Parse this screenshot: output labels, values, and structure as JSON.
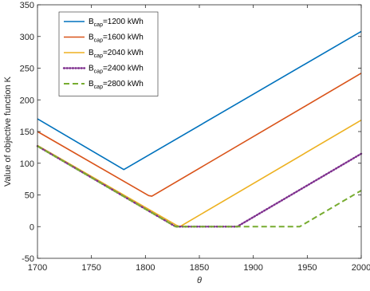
{
  "chart_data": {
    "type": "line",
    "xlabel": "θ",
    "ylabel": "Value of objective function K",
    "xlim": [
      1700,
      2000
    ],
    "ylim": [
      -50,
      350
    ],
    "xticks": [
      1700,
      1750,
      1800,
      1850,
      1900,
      1950,
      2000
    ],
    "yticks": [
      -50,
      0,
      50,
      100,
      150,
      200,
      250,
      300,
      350
    ],
    "grid": false,
    "legend_position": "top-left",
    "series": [
      {
        "name": "B_cap=1200 kWh",
        "legend_main": "B",
        "legend_sub": "cap",
        "legend_rest": "=1200 kWh",
        "color": "#0072BD",
        "style": "solid",
        "x": [
          1700,
          1780,
          2000
        ],
        "y": [
          170,
          90,
          308
        ]
      },
      {
        "name": "B_cap=1600 kWh",
        "legend_main": "B",
        "legend_sub": "cap",
        "legend_rest": "=1600 kWh",
        "color": "#D95319",
        "style": "solid",
        "x": [
          1700,
          1803,
          1806,
          2000
        ],
        "y": [
          150,
          49,
          48,
          242
        ]
      },
      {
        "name": "B_cap=2040 kWh",
        "legend_main": "B",
        "legend_sub": "cap",
        "legend_rest": "=2040 kWh",
        "color": "#EDB120",
        "style": "solid",
        "x": [
          1700,
          1829,
          1832,
          2000
        ],
        "y": [
          128,
          2,
          0,
          168
        ]
      },
      {
        "name": "B_cap=2400 kWh",
        "legend_main": "B",
        "legend_sub": "cap",
        "legend_rest": "=2400 kWh",
        "color": "#7E2F8E",
        "style": "dotted",
        "x": [
          1700,
          1828,
          1885,
          2000
        ],
        "y": [
          127,
          0,
          0,
          115
        ]
      },
      {
        "name": "B_cap=2800 kWh",
        "legend_main": "B",
        "legend_sub": "cap",
        "legend_rest": "=2800 kWh",
        "color": "#77AC30",
        "style": "dashed",
        "x": [
          1700,
          1828,
          1943,
          2000
        ],
        "y": [
          127,
          0,
          0,
          57
        ]
      }
    ]
  }
}
